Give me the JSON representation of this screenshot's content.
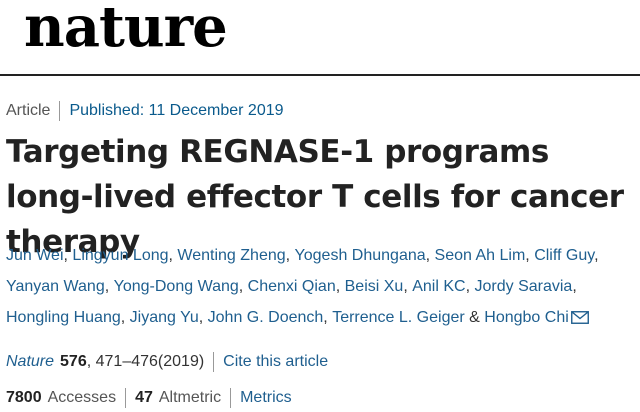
{
  "brand": {
    "logo_text": "nature"
  },
  "article_meta": {
    "type": "Article",
    "published": "Published: 11 December 2019"
  },
  "title": "Targeting REGNASE-1 programs long-lived effector T cells for cancer therapy",
  "authors": [
    "Jun Wei",
    "Lingyun Long",
    "Wenting Zheng",
    "Yogesh Dhungana",
    "Seon Ah Lim",
    "Cliff Guy",
    "Yanyan Wang",
    "Yong-Dong Wang",
    "Chenxi Qian",
    "Beisi Xu",
    "Anil KC",
    "Jordy Saravia",
    "Hongling Huang",
    "Jiyang Yu",
    "John G. Doench",
    "Terrence L. Geiger",
    "Hongbo Chi"
  ],
  "author_separators": {
    "comma": ",",
    "ampersand": "&"
  },
  "citation": {
    "journal": "Nature",
    "volume": "576",
    "pages_year": ", 471–476(2019)",
    "cite_label": "Cite this article"
  },
  "metrics": {
    "accesses_count": "7800",
    "accesses_label": "Accesses",
    "altmetric_count": "47",
    "altmetric_label": "Altmetric",
    "metrics_label": "Metrics"
  },
  "colors": {
    "link": "#1F5F8F",
    "text": "#222222",
    "muted": "#555555"
  },
  "icons": {
    "corresponding_author": "mail-icon"
  }
}
